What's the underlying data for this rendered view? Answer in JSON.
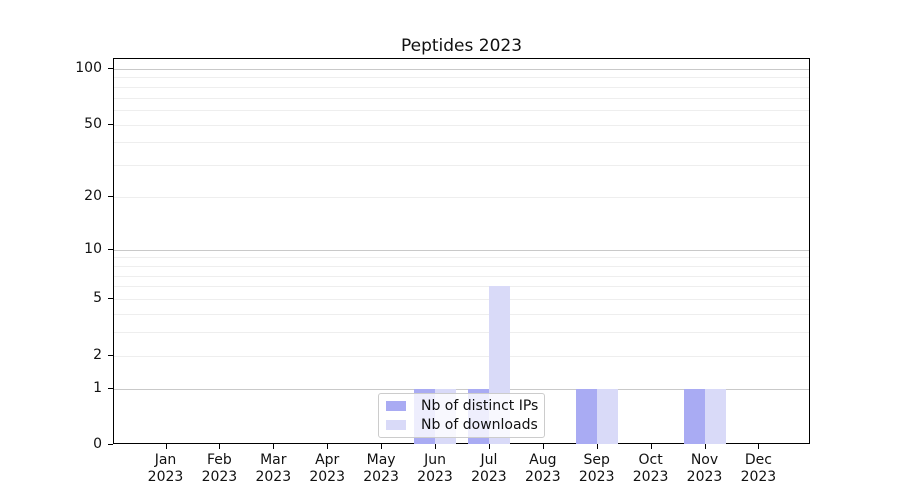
{
  "chart_data": {
    "type": "bar",
    "title": "Peptides 2023",
    "categories": [
      "Jan 2023",
      "Feb 2023",
      "Mar 2023",
      "Apr 2023",
      "May 2023",
      "Jun 2023",
      "Jul 2023",
      "Aug 2023",
      "Sep 2023",
      "Oct 2023",
      "Nov 2023",
      "Dec 2023"
    ],
    "months": [
      "Jan",
      "Feb",
      "Mar",
      "Apr",
      "May",
      "Jun",
      "Jul",
      "Aug",
      "Sep",
      "Oct",
      "Nov",
      "Dec"
    ],
    "year_label": "2023",
    "series": [
      {
        "name": "Nb of distinct IPs",
        "color": "#a9abf3",
        "values": [
          0,
          0,
          0,
          0,
          0,
          1,
          1,
          0,
          1,
          0,
          1,
          0
        ]
      },
      {
        "name": "Nb of downloads",
        "color": "#d9daf8",
        "values": [
          0,
          0,
          0,
          0,
          0,
          1,
          6,
          0,
          1,
          0,
          1,
          0
        ]
      }
    ],
    "y_ticks": [
      0,
      1,
      2,
      5,
      10,
      20,
      50,
      100
    ],
    "y_scale": "log1p",
    "y_axis_max": 113,
    "ylim": [
      0,
      113
    ],
    "grid": true,
    "gridlines": {
      "major": [
        1,
        10,
        100
      ],
      "minor": [
        2,
        3,
        4,
        5,
        6,
        7,
        8,
        9,
        20,
        30,
        40,
        50,
        60,
        70,
        80,
        90
      ]
    },
    "legend_position": "lower center",
    "colors": {
      "major_grid": "#c9c9c9",
      "minor_grid": "#eeeeee",
      "axis": "#000000",
      "text": "#111111",
      "legend_border": "#cccccc"
    }
  }
}
